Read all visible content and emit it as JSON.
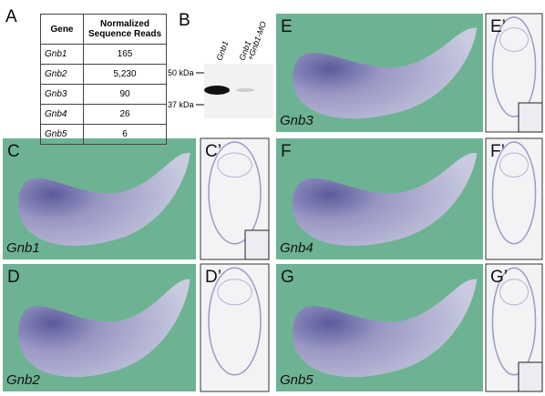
{
  "panel_a": {
    "label": "A",
    "table": {
      "header": [
        "Gene",
        "Normalized Sequence Reads"
      ],
      "rows": [
        [
          "Gnb1",
          "165"
        ],
        [
          "Gnb2",
          "5,230"
        ],
        [
          "Gnb3",
          "90"
        ],
        [
          "Gnb4",
          "26"
        ],
        [
          "Gnb5",
          "6"
        ]
      ]
    }
  },
  "panel_b": {
    "label": "B",
    "lanes": [
      [
        "Gnb1"
      ],
      [
        "Gnb1",
        "+Gnb1-MO"
      ]
    ],
    "markers": [
      "50 kDa",
      "37 kDa"
    ]
  },
  "panels": [
    {
      "label": "C",
      "gene": "Gnb1"
    },
    {
      "label": "C’"
    },
    {
      "label": "D",
      "gene": "Gnb2"
    },
    {
      "label": "D’"
    },
    {
      "label": "E",
      "gene": "Gnb3"
    },
    {
      "label": "E’"
    },
    {
      "label": "F",
      "gene": "Gnb4"
    },
    {
      "label": "F’"
    },
    {
      "label": "G",
      "gene": "Gnb5"
    },
    {
      "label": "G’"
    }
  ]
}
